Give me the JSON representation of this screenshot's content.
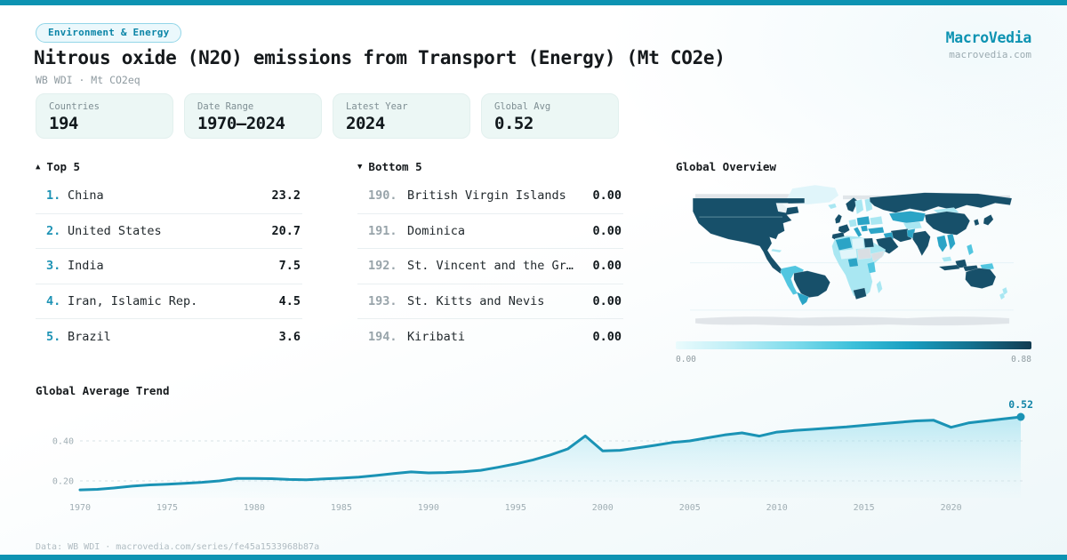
{
  "brand": {
    "name": "MacroVedia",
    "domain": "macrovedia.com",
    "accent_color": "#0d93b2"
  },
  "header": {
    "badge": "Environment & Energy",
    "title": "Nitrous oxide (N2O) emissions from Transport (Energy) (Mt CO2e)",
    "subtitle": "WB WDI · Mt CO2eq"
  },
  "stats": [
    {
      "label": "Countries",
      "value": "194"
    },
    {
      "label": "Date Range",
      "value": "1970–2024"
    },
    {
      "label": "Latest Year",
      "value": "2024"
    },
    {
      "label": "Global Avg",
      "value": "0.52"
    }
  ],
  "top5": {
    "marker": "▲",
    "label": "Top 5",
    "items": [
      {
        "rank": "1.",
        "name": "China",
        "value": "23.2"
      },
      {
        "rank": "2.",
        "name": "United States",
        "value": "20.7"
      },
      {
        "rank": "3.",
        "name": "India",
        "value": "7.5"
      },
      {
        "rank": "4.",
        "name": "Iran, Islamic Rep.",
        "value": "4.5"
      },
      {
        "rank": "5.",
        "name": "Brazil",
        "value": "3.6"
      }
    ]
  },
  "bottom5": {
    "marker": "▼",
    "label": "Bottom 5",
    "items": [
      {
        "rank": "190.",
        "name": "British Virgin Islands",
        "value": "0.00"
      },
      {
        "rank": "191.",
        "name": "Dominica",
        "value": "0.00"
      },
      {
        "rank": "192.",
        "name": "St. Vincent and the Gr…",
        "value": "0.00"
      },
      {
        "rank": "193.",
        "name": "St. Kitts and Nevis",
        "value": "0.00"
      },
      {
        "rank": "194.",
        "name": "Kiribati",
        "value": "0.00"
      }
    ]
  },
  "map": {
    "title": "Global Overview",
    "legend_min": "0.00",
    "legend_max": "0.88"
  },
  "trend": {
    "title": "Global Average Trend",
    "end_label": "0.52"
  },
  "chart_data": [
    {
      "type": "area",
      "title": "Global Average Trend",
      "ylabel": "Mt CO2eq",
      "x": [
        1970,
        1971,
        1972,
        1973,
        1974,
        1975,
        1976,
        1977,
        1978,
        1979,
        1980,
        1981,
        1982,
        1983,
        1984,
        1985,
        1986,
        1987,
        1988,
        1989,
        1990,
        1991,
        1992,
        1993,
        1994,
        1995,
        1996,
        1997,
        1998,
        1999,
        2000,
        2001,
        2002,
        2003,
        2004,
        2005,
        2006,
        2007,
        2008,
        2009,
        2010,
        2011,
        2012,
        2013,
        2014,
        2015,
        2016,
        2017,
        2018,
        2019,
        2020,
        2021,
        2022,
        2023,
        2024
      ],
      "values": [
        0.155,
        0.158,
        0.165,
        0.174,
        0.18,
        0.183,
        0.188,
        0.193,
        0.2,
        0.212,
        0.212,
        0.211,
        0.207,
        0.206,
        0.21,
        0.214,
        0.219,
        0.227,
        0.237,
        0.245,
        0.24,
        0.242,
        0.246,
        0.253,
        0.268,
        0.285,
        0.305,
        0.33,
        0.36,
        0.425,
        0.35,
        0.353,
        0.365,
        0.378,
        0.392,
        0.4,
        0.415,
        0.43,
        0.44,
        0.424,
        0.444,
        0.452,
        0.458,
        0.464,
        0.47,
        0.478,
        0.486,
        0.493,
        0.5,
        0.503,
        0.468,
        0.49,
        0.5,
        0.51,
        0.52
      ],
      "ylim": [
        0.13,
        0.56
      ],
      "yticks": [
        0.2,
        0.4
      ],
      "xticks": [
        1970,
        1975,
        1980,
        1985,
        1990,
        1995,
        2000,
        2005,
        2010,
        2015,
        2020
      ],
      "grid": "dashed-horizontal",
      "legend": "none",
      "line_color": "#1a93b5",
      "end_point_label": "0.52"
    },
    {
      "type": "heatmap",
      "subtype": "world-choropleth",
      "title": "Global Overview",
      "scale_min": 0.0,
      "scale_max": 0.88,
      "scale_colors": [
        "#eafbfd",
        "#133c52"
      ],
      "high_examples": [
        "China",
        "United States",
        "India",
        "Iran",
        "Brazil",
        "Russia",
        "Australia"
      ],
      "no_data_color": "#d9dee3"
    }
  ],
  "footer": "Data: WB WDI · macrovedia.com/series/fe45a1533968b87a"
}
